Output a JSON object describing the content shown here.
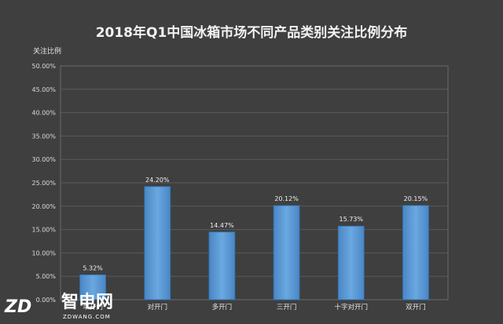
{
  "chart_data": {
    "type": "bar",
    "title": "2018年Q1中国冰箱市场不同产品类别关注比例分布",
    "ylabel": "关注比例",
    "xlabel": "",
    "categories": [
      "单开门",
      "对开门",
      "多开门",
      "三开门",
      "十字对开门",
      "双开门"
    ],
    "values": [
      5.32,
      24.2,
      14.47,
      20.12,
      15.73,
      20.15
    ],
    "data_labels": [
      "5.32%",
      "24.20%",
      "14.47%",
      "20.12%",
      "15.73%",
      "20.15%"
    ],
    "ylim": [
      0,
      50
    ],
    "yticks": [
      0,
      5,
      10,
      15,
      20,
      25,
      30,
      35,
      40,
      45,
      50
    ],
    "ytick_labels": [
      "0.00%",
      "5.00%",
      "10.00%",
      "15.00%",
      "20.00%",
      "25.00%",
      "30.00%",
      "35.00%",
      "40.00%",
      "45.00%",
      "50.00%"
    ],
    "grid": true,
    "legend": "none",
    "colors": {
      "background": "#3f3f3f",
      "bar": "#5b9bd5",
      "bar_edge": "#2e75b6",
      "grid": "#5a5a5a",
      "text": "#e6e6e6"
    }
  },
  "watermark": {
    "brand": "智电网",
    "site": "ZDWANG.COM",
    "mark": "ZD"
  }
}
